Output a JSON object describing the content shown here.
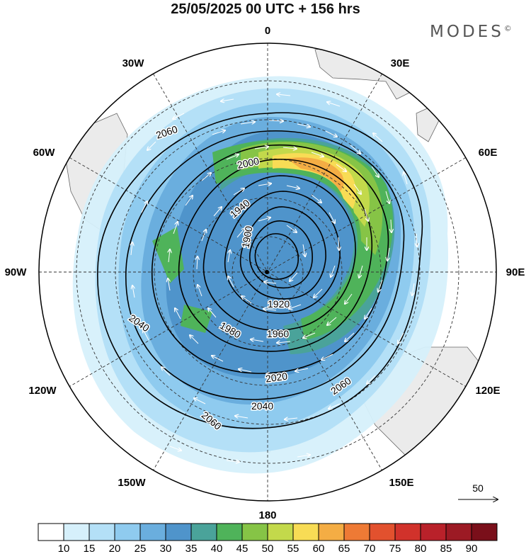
{
  "title": "25/05/2025  00 UTC  + 156 hrs",
  "brand": "MODES",
  "brand_mark": "©",
  "longitude_labels": [
    "0",
    "30E",
    "60E",
    "90E",
    "120E",
    "150E",
    "180",
    "150W",
    "120W",
    "90W",
    "60W",
    "30W"
  ],
  "contour_levels": [
    "1900",
    "1920",
    "1940",
    "1960",
    "1980",
    "2000",
    "2020",
    "2040",
    "2060"
  ],
  "vector_reference": "50",
  "colorbar": {
    "ticks": [
      "10",
      "15",
      "20",
      "25",
      "30",
      "35",
      "40",
      "45",
      "50",
      "55",
      "60",
      "65",
      "70",
      "75",
      "80",
      "85",
      "90"
    ],
    "colors": [
      "#ffffff",
      "#d6f0fb",
      "#b4e0f7",
      "#8fcbef",
      "#6aaede",
      "#4f94cb",
      "#4aa39a",
      "#4fb35a",
      "#86c446",
      "#c3d94b",
      "#f8dc55",
      "#f4ad44",
      "#ee7a35",
      "#e2512e",
      "#d1322b",
      "#b9212a",
      "#9c1a24",
      "#7a0f1a"
    ]
  }
}
